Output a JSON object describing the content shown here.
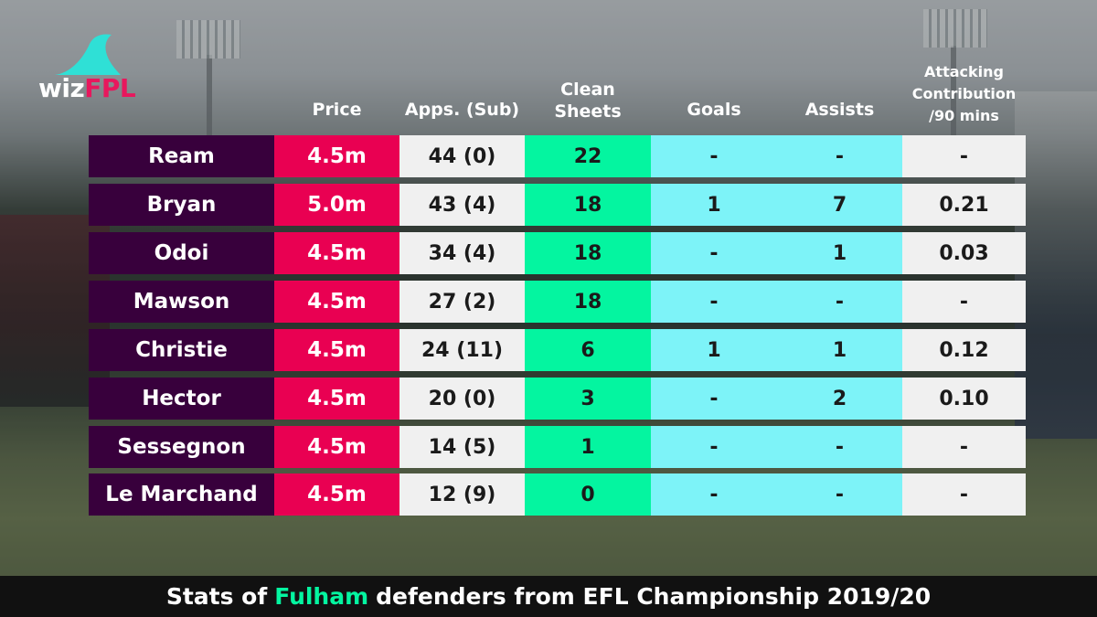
{
  "logo": {
    "part1": "wiz",
    "part2": "FPL"
  },
  "headers": {
    "price": "Price",
    "apps": "Apps. (Sub)",
    "clean_sheets_line1": "Clean",
    "clean_sheets_line2": "Sheets",
    "goals": "Goals",
    "assists": "Assists",
    "attacking_line1": "Attacking",
    "attacking_line2": "Contribution",
    "attacking_line3": "/90 mins"
  },
  "rows": [
    {
      "name": "Ream",
      "price": "4.5m",
      "apps": "44 (0)",
      "clean_sheets": "22",
      "goals": "-",
      "assists": "-",
      "attacking": "-"
    },
    {
      "name": "Bryan",
      "price": "5.0m",
      "apps": "43 (4)",
      "clean_sheets": "18",
      "goals": "1",
      "assists": "7",
      "attacking": "0.21"
    },
    {
      "name": "Odoi",
      "price": "4.5m",
      "apps": "34 (4)",
      "clean_sheets": "18",
      "goals": "-",
      "assists": "1",
      "attacking": "0.03"
    },
    {
      "name": "Mawson",
      "price": "4.5m",
      "apps": "27 (2)",
      "clean_sheets": "18",
      "goals": "-",
      "assists": "-",
      "attacking": "-"
    },
    {
      "name": "Christie",
      "price": "4.5m",
      "apps": "24 (11)",
      "clean_sheets": "6",
      "goals": "1",
      "assists": "1",
      "attacking": "0.12"
    },
    {
      "name": "Hector",
      "price": "4.5m",
      "apps": "20 (0)",
      "clean_sheets": "3",
      "goals": "-",
      "assists": "2",
      "attacking": "0.10"
    },
    {
      "name": "Sessegnon",
      "price": "4.5m",
      "apps": "14 (5)",
      "clean_sheets": "1",
      "goals": "-",
      "assists": "-",
      "attacking": "-"
    },
    {
      "name": "Le Marchand",
      "price": "4.5m",
      "apps": "12 (9)",
      "clean_sheets": "0",
      "goals": "-",
      "assists": "-",
      "attacking": "-"
    }
  ],
  "footer": {
    "prefix": "Stats of",
    "highlight": "Fulham",
    "suffix": "defenders from EFL Championship 2019/20"
  },
  "colors": {
    "name_bg": "#38003c",
    "price_bg": "#e90052",
    "clean_sheets_bg": "#04f5a0",
    "goals_assists_bg": "#7df3f8",
    "light_bg": "#f0f0f0",
    "footer_highlight": "#04f5a0",
    "logo_fin": "#2fe0d6"
  }
}
